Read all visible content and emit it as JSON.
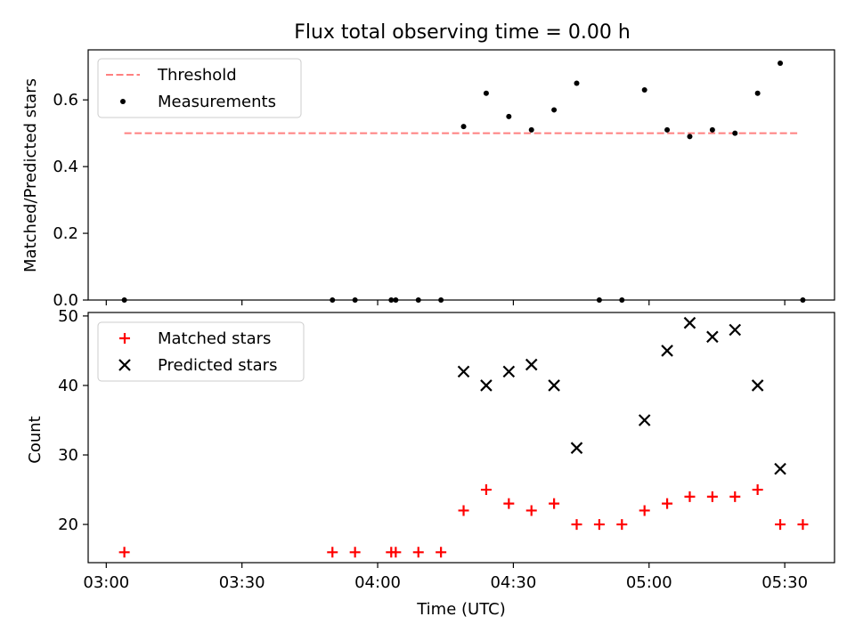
{
  "title": "Flux total observing time = 0.00 h",
  "colors": {
    "threshold": "#ff8080",
    "measurement": "#000000",
    "matched": "#ff0000",
    "predicted": "#000000"
  },
  "chart_data": [
    {
      "type": "scatter",
      "panel": "top",
      "ylabel": "Matched/Predicted stars",
      "xlabel": "",
      "x_ticks": [
        "03:00",
        "03:30",
        "04:00",
        "04:30",
        "05:00",
        "05:30"
      ],
      "x_tick_labels_visible": false,
      "xlim": [
        "02:56",
        "05:41"
      ],
      "ylim": [
        0,
        0.75
      ],
      "y_ticks": [
        "0.0",
        "0.2",
        "0.4",
        "0.6"
      ],
      "legend": {
        "position": "top-left",
        "entries": [
          "Threshold",
          "Measurements"
        ]
      },
      "threshold": {
        "name": "Threshold",
        "value": 0.5,
        "x_range": [
          "03:04",
          "05:33"
        ],
        "style": "dashed"
      },
      "series": [
        {
          "name": "Measurements",
          "marker": "dot",
          "points": [
            [
              "03:04",
              0.0
            ],
            [
              "03:50",
              0.0
            ],
            [
              "03:55",
              0.0
            ],
            [
              "04:03",
              0.0
            ],
            [
              "04:04",
              0.0
            ],
            [
              "04:09",
              0.0
            ],
            [
              "04:14",
              0.0
            ],
            [
              "04:19",
              0.52
            ],
            [
              "04:24",
              0.62
            ],
            [
              "04:29",
              0.55
            ],
            [
              "04:34",
              0.51
            ],
            [
              "04:39",
              0.57
            ],
            [
              "04:44",
              0.65
            ],
            [
              "04:49",
              0.0
            ],
            [
              "04:54",
              0.0
            ],
            [
              "04:59",
              0.63
            ],
            [
              "05:04",
              0.51
            ],
            [
              "05:09",
              0.49
            ],
            [
              "05:14",
              0.51
            ],
            [
              "05:19",
              0.5
            ],
            [
              "05:24",
              0.62
            ],
            [
              "05:29",
              0.71
            ],
            [
              "05:34",
              0.0
            ]
          ]
        }
      ]
    },
    {
      "type": "scatter",
      "panel": "bottom",
      "xlabel": "Time (UTC)",
      "ylabel": "Count",
      "x_ticks": [
        "03:00",
        "03:30",
        "04:00",
        "04:30",
        "05:00",
        "05:30"
      ],
      "xlim": [
        "02:56",
        "05:41"
      ],
      "ylim": [
        14.5,
        50.5
      ],
      "y_ticks": [
        "20",
        "30",
        "40",
        "50"
      ],
      "legend": {
        "position": "top-left",
        "entries": [
          "Matched stars",
          "Predicted stars"
        ]
      },
      "series": [
        {
          "name": "Matched stars",
          "marker": "plus",
          "points": [
            [
              "03:04",
              16
            ],
            [
              "03:50",
              16
            ],
            [
              "03:55",
              16
            ],
            [
              "04:03",
              16
            ],
            [
              "04:04",
              16
            ],
            [
              "04:09",
              16
            ],
            [
              "04:14",
              16
            ],
            [
              "04:19",
              22
            ],
            [
              "04:24",
              25
            ],
            [
              "04:29",
              23
            ],
            [
              "04:34",
              22
            ],
            [
              "04:39",
              23
            ],
            [
              "04:44",
              20
            ],
            [
              "04:49",
              20
            ],
            [
              "04:54",
              20
            ],
            [
              "04:59",
              22
            ],
            [
              "05:04",
              23
            ],
            [
              "05:09",
              24
            ],
            [
              "05:14",
              24
            ],
            [
              "05:19",
              24
            ],
            [
              "05:24",
              25
            ],
            [
              "05:29",
              20
            ],
            [
              "05:34",
              20
            ]
          ]
        },
        {
          "name": "Predicted stars",
          "marker": "x",
          "points": [
            [
              "04:19",
              42
            ],
            [
              "04:24",
              40
            ],
            [
              "04:29",
              42
            ],
            [
              "04:34",
              43
            ],
            [
              "04:39",
              40
            ],
            [
              "04:44",
              31
            ],
            [
              "04:59",
              35
            ],
            [
              "05:04",
              45
            ],
            [
              "05:09",
              49
            ],
            [
              "05:14",
              47
            ],
            [
              "05:19",
              48
            ],
            [
              "05:24",
              40
            ],
            [
              "05:29",
              28
            ]
          ]
        }
      ]
    }
  ]
}
